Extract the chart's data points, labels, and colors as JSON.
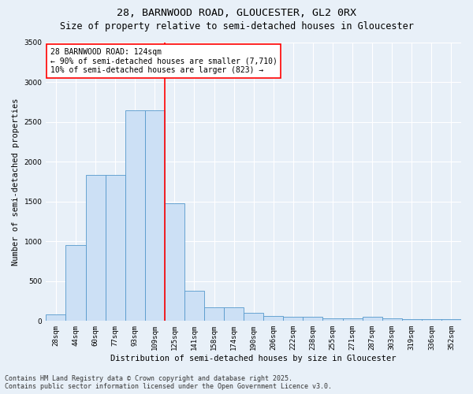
{
  "title_line1": "28, BARNWOOD ROAD, GLOUCESTER, GL2 0RX",
  "title_line2": "Size of property relative to semi-detached houses in Gloucester",
  "xlabel": "Distribution of semi-detached houses by size in Gloucester",
  "ylabel": "Number of semi-detached properties",
  "annotation_title": "28 BARNWOOD ROAD: 124sqm",
  "annotation_line2": "← 90% of semi-detached houses are smaller (7,710)",
  "annotation_line3": "10% of semi-detached houses are larger (823) →",
  "footer_line1": "Contains HM Land Registry data © Crown copyright and database right 2025.",
  "footer_line2": "Contains public sector information licensed under the Open Government Licence v3.0.",
  "bar_labels": [
    "28sqm",
    "44sqm",
    "60sqm",
    "77sqm",
    "93sqm",
    "109sqm",
    "125sqm",
    "141sqm",
    "158sqm",
    "174sqm",
    "190sqm",
    "206sqm",
    "222sqm",
    "238sqm",
    "255sqm",
    "271sqm",
    "287sqm",
    "303sqm",
    "319sqm",
    "336sqm",
    "352sqm"
  ],
  "bar_values": [
    80,
    950,
    1830,
    1830,
    2640,
    2640,
    1480,
    380,
    175,
    175,
    100,
    60,
    50,
    50,
    30,
    30,
    50,
    30,
    20,
    20,
    20
  ],
  "bar_face_color": "#cce0f5",
  "bar_edge_color": "#5599cc",
  "vline_color": "red",
  "ylim": [
    0,
    3500
  ],
  "yticks": [
    0,
    500,
    1000,
    1500,
    2000,
    2500,
    3000,
    3500
  ],
  "background_color": "#e8f0f8",
  "grid_color": "#ffffff",
  "annotation_box_color": "#ffffff",
  "annotation_box_edge": "red",
  "title_fontsize": 9.5,
  "subtitle_fontsize": 8.5,
  "axis_label_fontsize": 7.5,
  "tick_fontsize": 6.5,
  "annotation_fontsize": 7,
  "footer_fontsize": 6
}
